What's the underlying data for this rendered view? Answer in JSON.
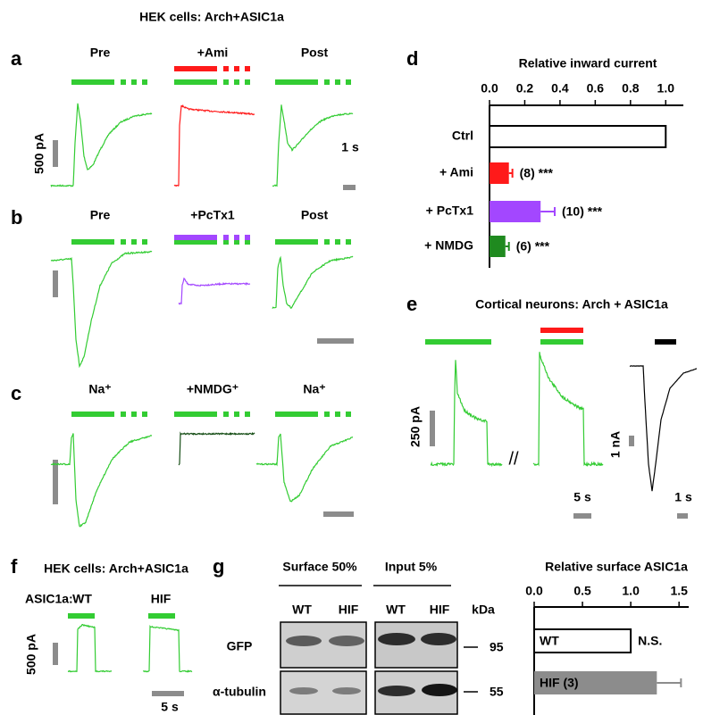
{
  "title": "HEK cells: Arch+ASIC1a",
  "panel_labels": [
    "a",
    "b",
    "c",
    "d",
    "e",
    "f",
    "g"
  ],
  "panel_a": {
    "labels": [
      "Pre",
      "+Ami",
      "Post"
    ],
    "scale_y": "500 pA",
    "scale_x": "1 s"
  },
  "panel_b": {
    "labels": [
      "Pre",
      "+PcTx1",
      "Post"
    ]
  },
  "panel_c": {
    "labels": [
      "Na⁺",
      "+NMDG⁺",
      "Na⁺"
    ]
  },
  "panel_e": {
    "title": "Cortical neurons: Arch + ASIC1a",
    "scale_y1": "250 pA",
    "scale_x1": "5 s",
    "scale_y2": "1 nA",
    "scale_x2": "1 s"
  },
  "panel_f": {
    "title": "HEK cells: Arch+ASIC1a",
    "row_label": "ASIC1a:",
    "conditions": [
      "WT",
      "HIF"
    ],
    "scale_y": "500 pA",
    "scale_x": "5 s"
  },
  "panel_g": {
    "groups": [
      "Surface 50%",
      "Input 5%"
    ],
    "lanes": [
      "WT",
      "HIF",
      "WT",
      "HIF"
    ],
    "kda_label": "kDa",
    "rows": [
      "GFP",
      "α-tubulin"
    ],
    "kda": [
      "95",
      "55"
    ]
  },
  "chart_data": [
    {
      "type": "hbar",
      "title": "Relative inward current",
      "categories": [
        "Ctrl",
        "+ Ami",
        "+ PcTx1",
        "+ NMDG"
      ],
      "values": [
        1.0,
        0.11,
        0.29,
        0.09
      ],
      "errors": [
        null,
        0.02,
        0.08,
        0.02
      ],
      "colors": [
        "#ffffff",
        "#ff1a1a",
        "#a347ff",
        "#1f8a1f"
      ],
      "annotations": [
        null,
        "(8) ***",
        "(10) ***",
        "(6) ***"
      ],
      "label_position": "left",
      "xlim": [
        0,
        1.1
      ],
      "xticks": [
        {
          "value": 0,
          "label": "0.0"
        },
        {
          "value": 0.2,
          "label": "0.2"
        },
        {
          "value": 0.4,
          "label": "0.4"
        },
        {
          "value": 0.6,
          "label": "0.6"
        },
        {
          "value": 0.8,
          "label": "0.8"
        },
        {
          "value": 1.0,
          "label": "1.0"
        }
      ]
    },
    {
      "type": "hbar",
      "title": "Relative surface ASIC1a",
      "categories": [
        "WT",
        "HIF (3)"
      ],
      "values": [
        1.0,
        1.27
      ],
      "errors": [
        null,
        0.25
      ],
      "colors": [
        "#ffffff",
        "#8c8c8c"
      ],
      "label_colors": [
        "#000000",
        "#ffffff"
      ],
      "annotations": [
        "N.S.",
        null
      ],
      "label_position": "inside",
      "xlim": [
        0,
        1.6
      ],
      "xticks": [
        {
          "value": 0,
          "label": "0.0"
        },
        {
          "value": 0.5,
          "label": "0.5"
        },
        {
          "value": 1.0,
          "label": "1.0"
        },
        {
          "value": 1.5,
          "label": "1.5"
        }
      ]
    }
  ]
}
